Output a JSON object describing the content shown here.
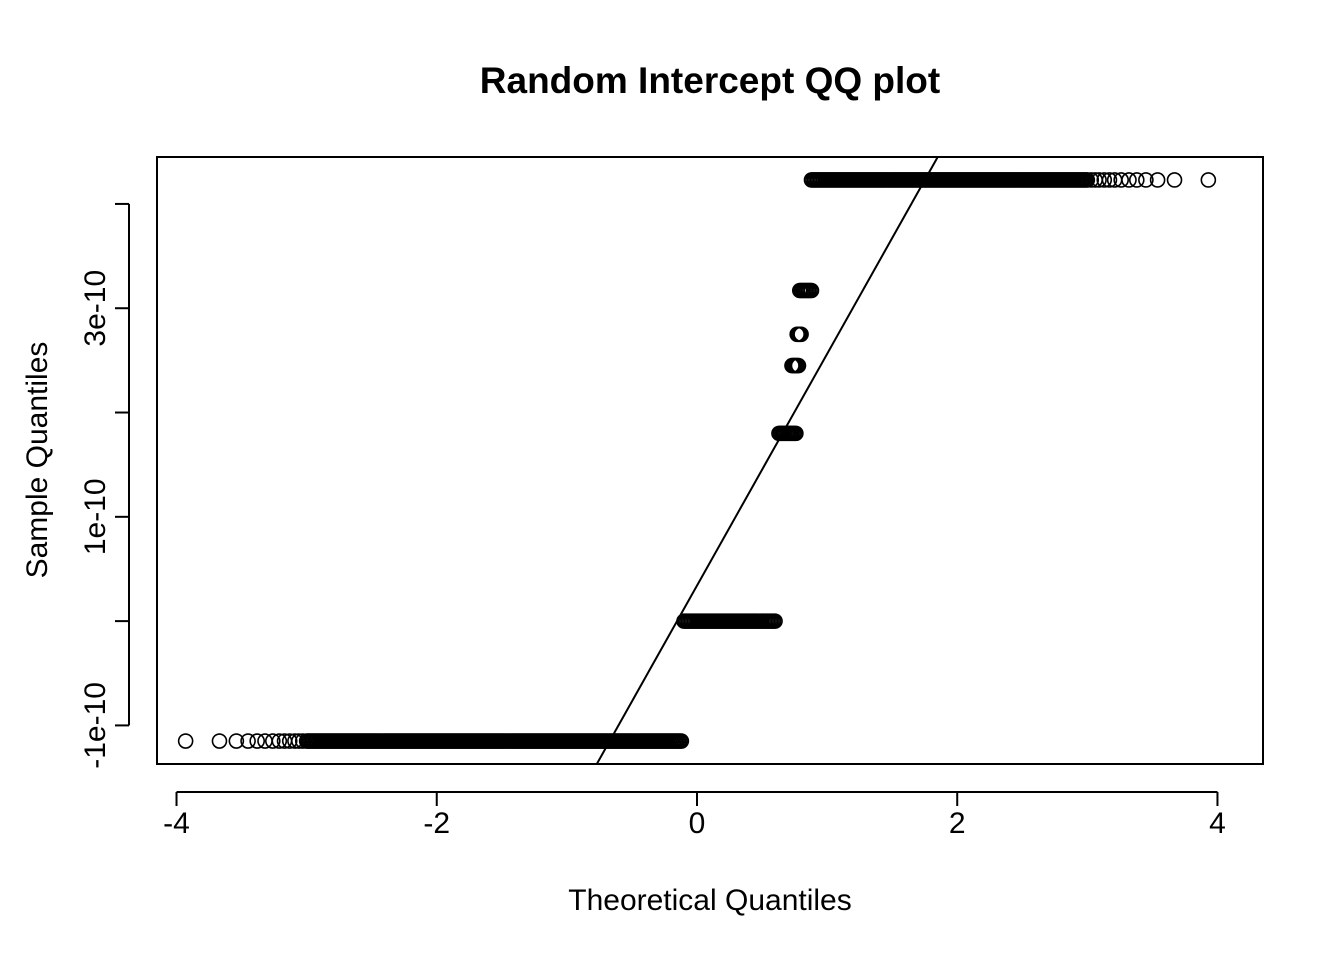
{
  "chart_data": {
    "type": "scatter",
    "title": "Random Intercept QQ plot",
    "xlabel": "Theoretical Quantiles",
    "ylabel": "Sample Quantiles",
    "xlim": [
      -4.15,
      4.35
    ],
    "ylim": [
      -1.37e-10,
      4.45e-10
    ],
    "x_ticks": [
      -4,
      -2,
      0,
      2,
      4
    ],
    "x_tick_labels": [
      "-4",
      "-2",
      "0",
      "2",
      "4"
    ],
    "y_ticks": [
      -1e-10,
      0,
      1e-10,
      2e-10,
      3e-10,
      4e-10
    ],
    "y_tick_labels": [
      "-1e-10",
      "",
      "1e-10",
      "",
      "3e-10",
      ""
    ],
    "grid": false,
    "marker": "open-circle",
    "colors": {
      "points": "#000000",
      "line": "#000000",
      "frame": "#000000"
    },
    "reference_line": {
      "type": "qqline",
      "points": [
        [
          -0.77,
          -1.37e-10
        ],
        [
          1.85,
          4.45e-10
        ]
      ]
    },
    "groups": [
      {
        "y": -1.15e-10,
        "x_dense": [
          -3.0,
          -0.12
        ],
        "x_sparse": [
          -3.93,
          -3.67,
          -3.54,
          -3.45,
          -3.38,
          -3.32,
          -3.26,
          -3.21,
          -3.17,
          -3.13,
          -3.09,
          -3.06,
          -3.03
        ]
      },
      {
        "y": 0.0,
        "x_dense": [
          -0.1,
          0.6
        ],
        "x_sparse": []
      },
      {
        "y": 1.8e-10,
        "x_dense": [
          0.63,
          0.76
        ],
        "x_sparse": []
      },
      {
        "y": 2.45e-10,
        "x_dense": [
          0.73,
          0.78
        ],
        "x_sparse": []
      },
      {
        "y": 2.75e-10,
        "x_dense": [
          0.77,
          0.8
        ],
        "x_sparse": []
      },
      {
        "y": 3.17e-10,
        "x_dense": [
          0.79,
          0.88
        ],
        "x_sparse": []
      },
      {
        "y": 4.23e-10,
        "x_dense": [
          0.88,
          3.0
        ],
        "x_sparse": [
          3.03,
          3.06,
          3.09,
          3.13,
          3.17,
          3.21,
          3.26,
          3.32,
          3.38,
          3.45,
          3.54,
          3.67,
          3.93
        ]
      }
    ]
  }
}
